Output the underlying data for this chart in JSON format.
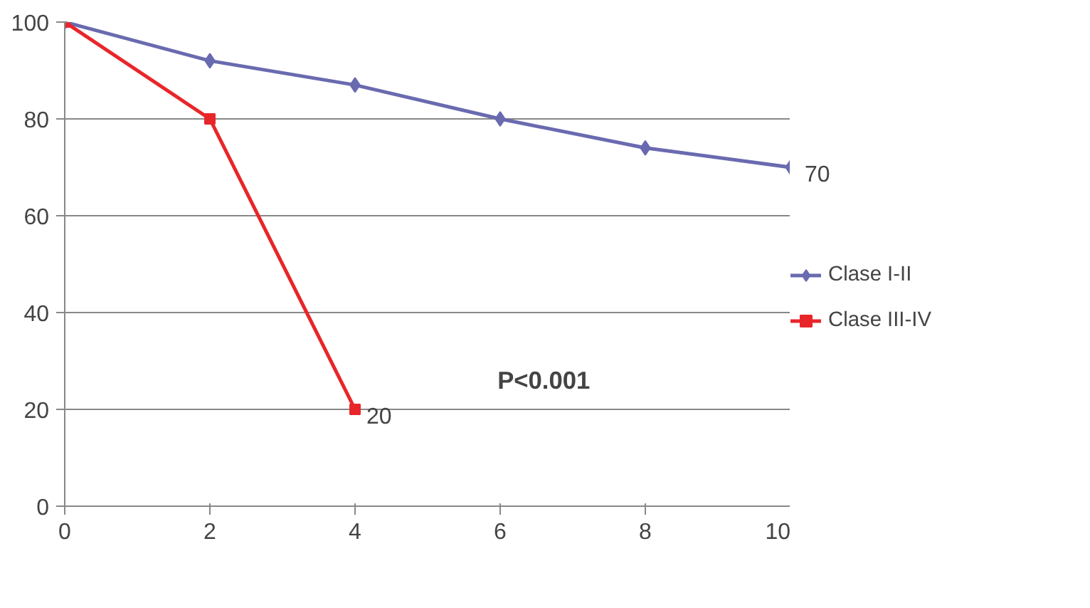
{
  "chart_data": {
    "type": "line",
    "x": [
      0,
      2,
      4,
      6,
      8,
      10
    ],
    "series": [
      {
        "name": "Clase I-II",
        "color": "#6a6ab0",
        "marker": "diamond",
        "values": [
          100,
          92,
          87,
          80,
          74,
          70
        ],
        "value_labels": [
          null,
          null,
          null,
          null,
          null,
          "70"
        ]
      },
      {
        "name": "Clase III-IV",
        "color": "#e8262a",
        "marker": "square",
        "x": [
          0,
          2,
          4
        ],
        "values": [
          100,
          80,
          20
        ],
        "value_labels": [
          null,
          null,
          "20"
        ]
      }
    ],
    "xlim": [
      0,
      10
    ],
    "xticks": [
      0,
      2,
      4,
      6,
      8,
      10
    ],
    "ylim": [
      0,
      100
    ],
    "yticks": [
      0,
      20,
      40,
      60,
      80,
      100
    ],
    "grid": "y",
    "legend": "right",
    "line_style": "solid",
    "annotations": [
      "P<0.001"
    ]
  }
}
